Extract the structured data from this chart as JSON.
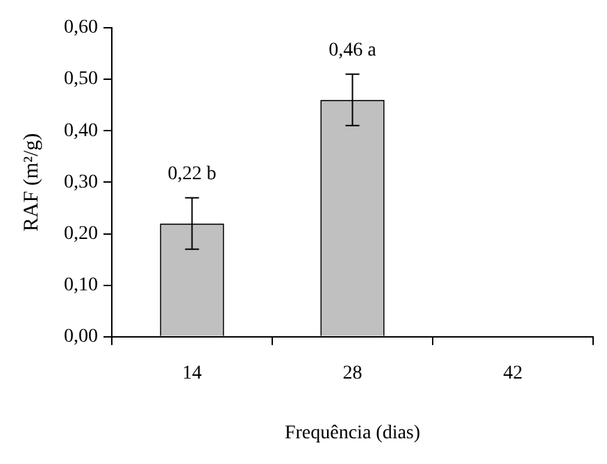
{
  "chart_data": {
    "type": "bar",
    "xlabel": "Frequência (dias)",
    "ylabel": "RAF (m²/g)",
    "categories": [
      "14",
      "28",
      "42"
    ],
    "values": [
      0.22,
      0.46,
      null
    ],
    "errors": [
      0.05,
      0.05,
      null
    ],
    "value_labels": [
      "0,22 b",
      "0,46 a",
      null
    ],
    "color": "#c0c0c0",
    "ylim": [
      0,
      0.6
    ],
    "yticks": [
      {
        "value": 0,
        "label": "0,00"
      },
      {
        "value": 0.1,
        "label": "0,10"
      },
      {
        "value": 0.2,
        "label": "0,20"
      },
      {
        "value": 0.3,
        "label": "0,30"
      },
      {
        "value": 0.4,
        "label": "0,40"
      },
      {
        "value": 0.5,
        "label": "0,50"
      },
      {
        "value": 0.6,
        "label": "0,60"
      }
    ],
    "grid": false,
    "legend": false
  }
}
